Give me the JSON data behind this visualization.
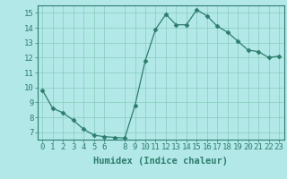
{
  "x": [
    0,
    1,
    2,
    3,
    4,
    5,
    6,
    7,
    8,
    9,
    10,
    11,
    12,
    13,
    14,
    15,
    16,
    17,
    18,
    19,
    20,
    21,
    22,
    23
  ],
  "y": [
    9.8,
    8.6,
    8.3,
    7.8,
    7.2,
    6.8,
    6.7,
    6.65,
    6.6,
    8.8,
    11.8,
    13.9,
    14.9,
    14.2,
    14.2,
    15.2,
    14.8,
    14.1,
    13.7,
    13.1,
    12.5,
    12.4,
    12.0,
    12.1
  ],
  "xlabel": "Humidex (Indice chaleur)",
  "ylim": [
    6.5,
    15.5
  ],
  "xlim": [
    -0.5,
    23.5
  ],
  "yticks": [
    7,
    8,
    9,
    10,
    11,
    12,
    13,
    14,
    15
  ],
  "xticks": [
    0,
    1,
    2,
    3,
    4,
    5,
    6,
    8,
    9,
    10,
    11,
    12,
    13,
    14,
    15,
    16,
    17,
    18,
    19,
    20,
    21,
    22,
    23
  ],
  "line_color": "#2e7d6e",
  "marker": "D",
  "marker_size": 2.5,
  "bg_color": "#b2e8e8",
  "grid_color": "#88ccbb",
  "tick_label_fontsize": 6.5,
  "xlabel_fontsize": 7.5
}
